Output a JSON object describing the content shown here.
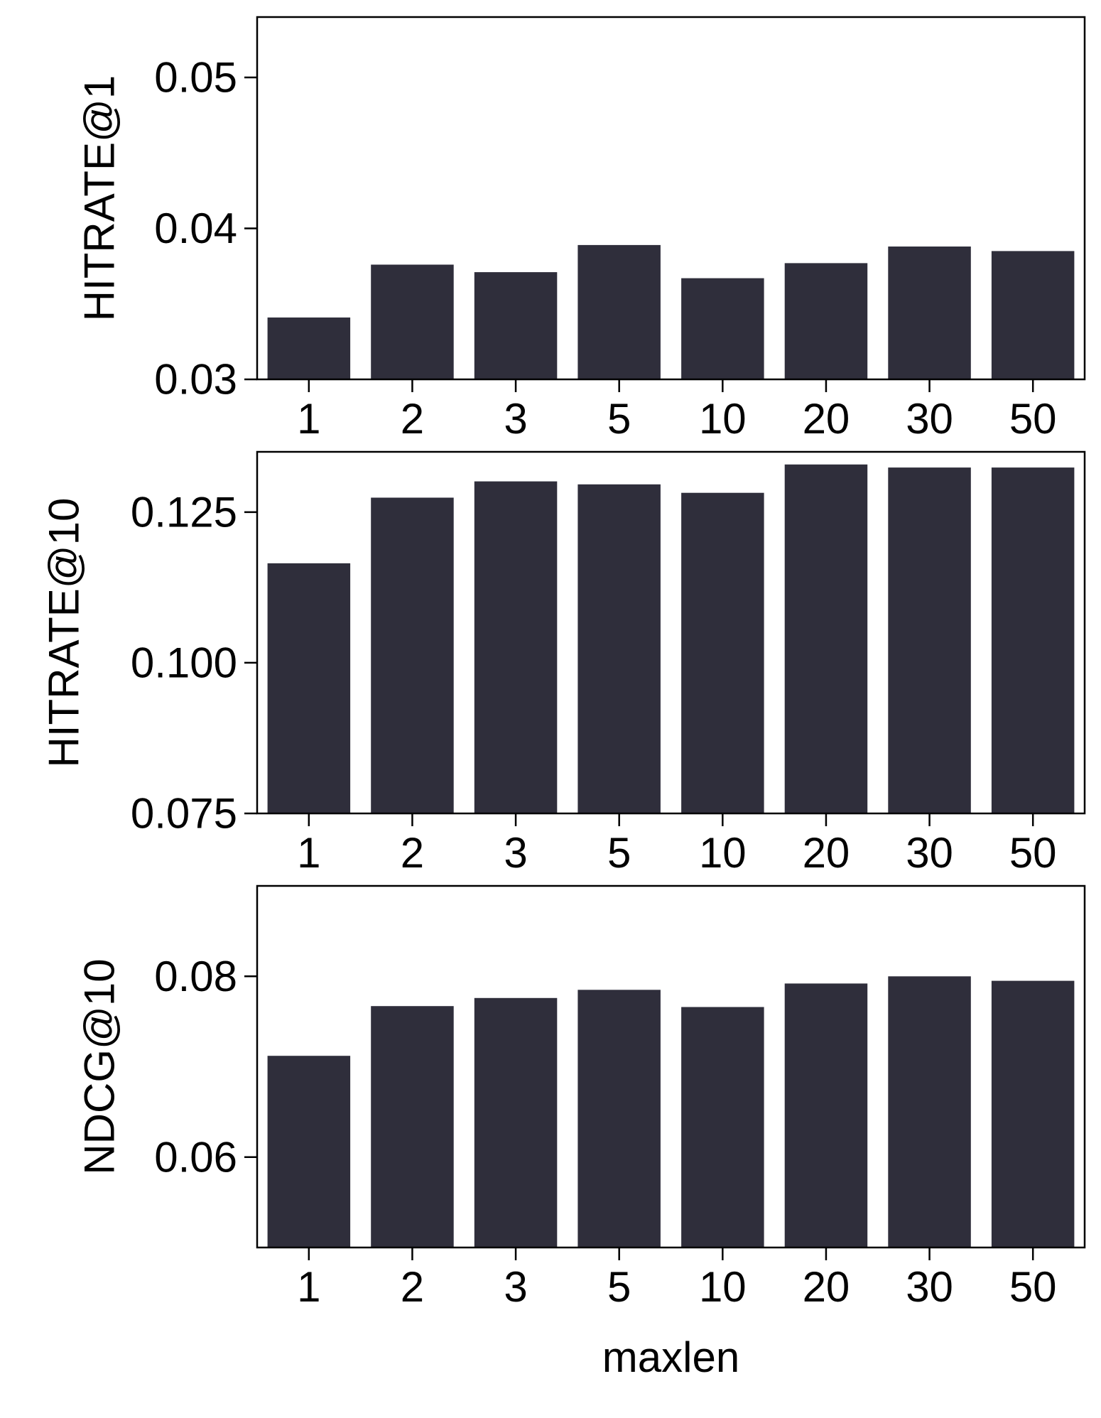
{
  "colors": {
    "bar": "#2f2e3b",
    "axis": "#000000",
    "background": "#ffffff"
  },
  "chart_data": [
    {
      "type": "bar",
      "categories": [
        "1",
        "2",
        "3",
        "5",
        "10",
        "20",
        "30",
        "50"
      ],
      "values": [
        0.0341,
        0.0376,
        0.0371,
        0.0389,
        0.0367,
        0.0377,
        0.0388,
        0.0385
      ],
      "ylabel": "HITRATE@1",
      "xlabel": "",
      "ylim": [
        0.03,
        0.054
      ],
      "yticks": [
        0.03,
        0.04,
        0.05
      ],
      "ytick_labels": [
        "0.03",
        "0.04",
        "0.05"
      ],
      "grid": false
    },
    {
      "type": "bar",
      "categories": [
        "1",
        "2",
        "3",
        "5",
        "10",
        "20",
        "30",
        "50"
      ],
      "values": [
        0.1165,
        0.1274,
        0.1301,
        0.1296,
        0.1282,
        0.1329,
        0.1324,
        0.1324
      ],
      "ylabel": "HITRATE@10",
      "xlabel": "",
      "ylim": [
        0.075,
        0.135
      ],
      "yticks": [
        0.075,
        0.1,
        0.125
      ],
      "ytick_labels": [
        "0.075",
        "0.100",
        "0.125"
      ],
      "grid": false
    },
    {
      "type": "bar",
      "categories": [
        "1",
        "2",
        "3",
        "5",
        "10",
        "20",
        "30",
        "50"
      ],
      "values": [
        0.0712,
        0.0767,
        0.0776,
        0.0785,
        0.0766,
        0.0792,
        0.08,
        0.0795
      ],
      "ylabel": "NDCG@10",
      "xlabel": "maxlen",
      "ylim": [
        0.05,
        0.09
      ],
      "yticks": [
        0.06,
        0.08
      ],
      "ytick_labels": [
        "0.06",
        "0.08"
      ],
      "grid": false
    }
  ]
}
